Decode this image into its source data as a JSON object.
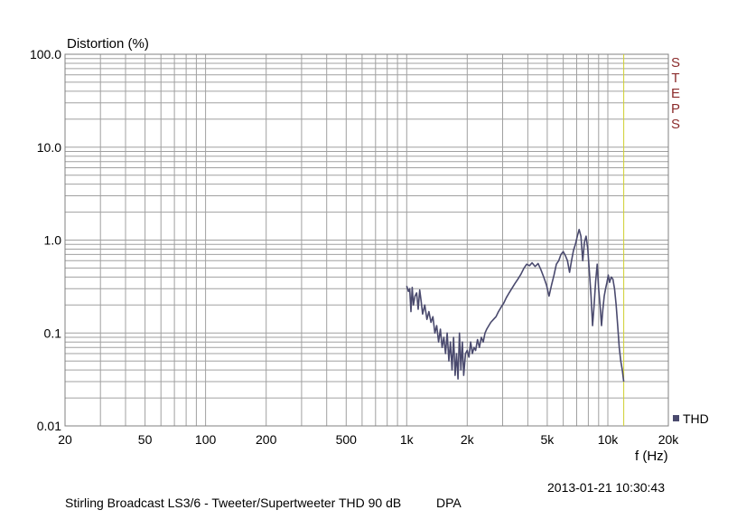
{
  "chart_data": {
    "type": "line",
    "ylabel": "Distortion (%)",
    "xlabel": "f (Hz)",
    "x_scale": "log",
    "y_scale": "log",
    "xlim": [
      20,
      20000
    ],
    "ylim": [
      0.01,
      100
    ],
    "x_ticks": [
      {
        "value": 20,
        "label": "20"
      },
      {
        "value": 50,
        "label": "50"
      },
      {
        "value": 100,
        "label": "100"
      },
      {
        "value": 200,
        "label": "200"
      },
      {
        "value": 500,
        "label": "500"
      },
      {
        "value": 1000,
        "label": "1k"
      },
      {
        "value": 2000,
        "label": "2k"
      },
      {
        "value": 5000,
        "label": "5k"
      },
      {
        "value": 10000,
        "label": "10k"
      },
      {
        "value": 20000,
        "label": "20k"
      }
    ],
    "y_ticks": [
      {
        "value": 100,
        "label": "100.0"
      },
      {
        "value": 10,
        "label": "10.0"
      },
      {
        "value": 1,
        "label": "1.0"
      },
      {
        "value": 0.1,
        "label": "0.1"
      },
      {
        "value": 0.01,
        "label": "0.01"
      }
    ],
    "grid": true,
    "legend_position": "bottom-right",
    "marker_frequency_hz": 12000,
    "series": [
      {
        "name": "THD",
        "color": "#4a4a6e",
        "x": [
          1000,
          1020,
          1035,
          1050,
          1065,
          1080,
          1100,
          1120,
          1140,
          1160,
          1180,
          1200,
          1230,
          1260,
          1290,
          1320,
          1350,
          1380,
          1410,
          1440,
          1470,
          1500,
          1530,
          1560,
          1590,
          1620,
          1650,
          1680,
          1710,
          1740,
          1770,
          1800,
          1830,
          1860,
          1890,
          1920,
          1960,
          2000,
          2040,
          2080,
          2120,
          2160,
          2200,
          2250,
          2300,
          2350,
          2400,
          2450,
          2500,
          2560,
          2620,
          2700,
          2780,
          2860,
          2950,
          3040,
          3130,
          3230,
          3330,
          3450,
          3570,
          3700,
          3830,
          3950,
          4080,
          4200,
          4350,
          4500,
          4650,
          4800,
          4950,
          5100,
          5250,
          5400,
          5550,
          5700,
          5850,
          6000,
          6150,
          6300,
          6450,
          6600,
          6750,
          6900,
          7050,
          7200,
          7350,
          7500,
          7650,
          7800,
          7950,
          8100,
          8250,
          8400,
          8550,
          8700,
          8850,
          9000,
          9150,
          9300,
          9450,
          9600,
          9750,
          9900,
          10050,
          10200,
          10400,
          10600,
          10800,
          11000,
          11200,
          11400,
          11600,
          11800,
          11950,
          12000
        ],
        "y": [
          0.32,
          0.28,
          0.3,
          0.17,
          0.31,
          0.2,
          0.25,
          0.27,
          0.18,
          0.29,
          0.22,
          0.16,
          0.2,
          0.14,
          0.17,
          0.13,
          0.15,
          0.1,
          0.12,
          0.08,
          0.11,
          0.07,
          0.09,
          0.06,
          0.1,
          0.05,
          0.08,
          0.04,
          0.09,
          0.035,
          0.06,
          0.032,
          0.1,
          0.04,
          0.08,
          0.035,
          0.06,
          0.065,
          0.055,
          0.08,
          0.06,
          0.07,
          0.065,
          0.085,
          0.07,
          0.09,
          0.08,
          0.1,
          0.11,
          0.12,
          0.13,
          0.14,
          0.15,
          0.17,
          0.19,
          0.21,
          0.24,
          0.27,
          0.3,
          0.34,
          0.38,
          0.43,
          0.5,
          0.55,
          0.53,
          0.57,
          0.52,
          0.56,
          0.48,
          0.4,
          0.33,
          0.25,
          0.33,
          0.42,
          0.55,
          0.6,
          0.7,
          0.75,
          0.68,
          0.6,
          0.45,
          0.6,
          0.78,
          0.9,
          1.1,
          1.3,
          1.1,
          0.6,
          0.95,
          1.1,
          0.8,
          0.45,
          0.25,
          0.12,
          0.2,
          0.36,
          0.55,
          0.3,
          0.2,
          0.12,
          0.18,
          0.25,
          0.3,
          0.35,
          0.42,
          0.35,
          0.4,
          0.38,
          0.3,
          0.2,
          0.12,
          0.07,
          0.05,
          0.04,
          0.032,
          0.03
        ]
      }
    ]
  },
  "steps_label": [
    "S",
    "T",
    "E",
    "P",
    "S"
  ],
  "legend_label": "THD",
  "timestamp": "2013-01-21 10:30:43",
  "footer_title": "Stirling Broadcast LS3/6 - Tweeter/Supertweeter THD 90 dB",
  "footer_tag": "DPA",
  "colors": {
    "grid": "#a0a0a0",
    "marker": "#d0d030",
    "steps": "#8b2c2c",
    "series": "#4a4a6e"
  }
}
